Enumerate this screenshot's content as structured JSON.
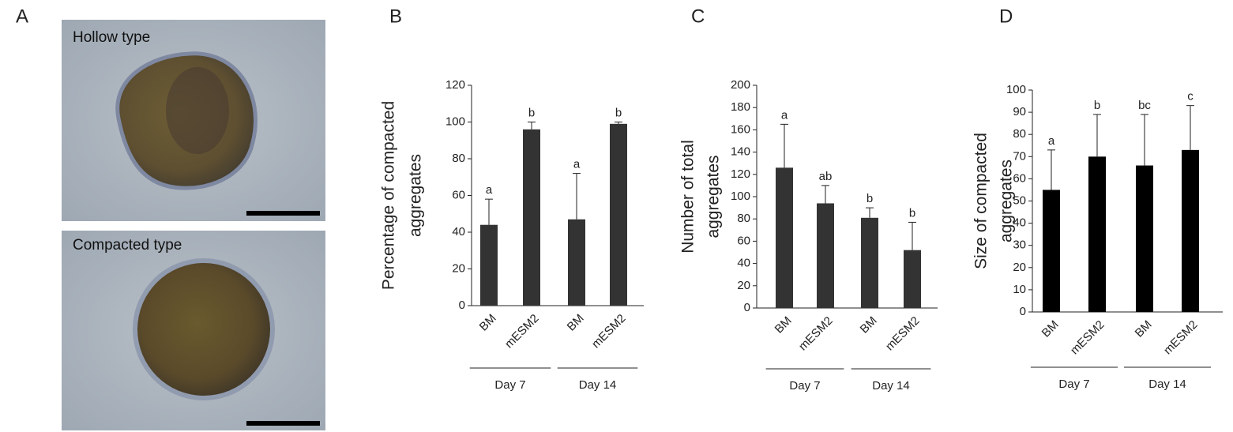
{
  "panel_a": {
    "label": "A",
    "images": [
      "Hollow type",
      "Compacted type"
    ]
  },
  "chart_data": [
    {
      "type": "bar",
      "label": "B",
      "ylabel": [
        "Percentage of compacted",
        "aggregates"
      ],
      "categories": [
        "BM",
        "mESM2",
        "BM",
        "mESM2"
      ],
      "groups": [
        "Day 7",
        "Day 14"
      ],
      "values": [
        44,
        96,
        47,
        99
      ],
      "errors": [
        14,
        4,
        25,
        1
      ],
      "annotations": [
        "a",
        "b",
        "a",
        "b"
      ],
      "color": "#333333",
      "ylim": [
        0,
        120
      ],
      "yticks": [
        0,
        20,
        40,
        60,
        80,
        100,
        120
      ]
    },
    {
      "type": "bar",
      "label": "C",
      "ylabel": [
        "Number of total",
        "aggregates"
      ],
      "categories": [
        "BM",
        "mESM2",
        "BM",
        "mESM2"
      ],
      "groups": [
        "Day 7",
        "Day 14"
      ],
      "values": [
        126,
        94,
        81,
        52
      ],
      "errors": [
        39,
        16,
        9,
        25
      ],
      "annotations": [
        "a",
        "ab",
        "b",
        "b"
      ],
      "color": "#333333",
      "ylim": [
        0,
        200
      ],
      "yticks": [
        0,
        20,
        40,
        60,
        80,
        100,
        120,
        140,
        160,
        180,
        200
      ]
    },
    {
      "type": "bar",
      "label": "D",
      "ylabel": [
        "Size of compacted",
        "aggregates"
      ],
      "categories": [
        "BM",
        "mESM2",
        "BM",
        "mESM2"
      ],
      "groups": [
        "Day 7",
        "Day 14"
      ],
      "values": [
        55,
        70,
        66,
        73
      ],
      "errors": [
        18,
        19,
        23,
        20
      ],
      "annotations": [
        "a",
        "b",
        "bc",
        "c"
      ],
      "color": "#000000",
      "ylim": [
        0,
        100
      ],
      "yticks": [
        0,
        10,
        20,
        30,
        40,
        50,
        60,
        70,
        80,
        90,
        100
      ]
    }
  ]
}
